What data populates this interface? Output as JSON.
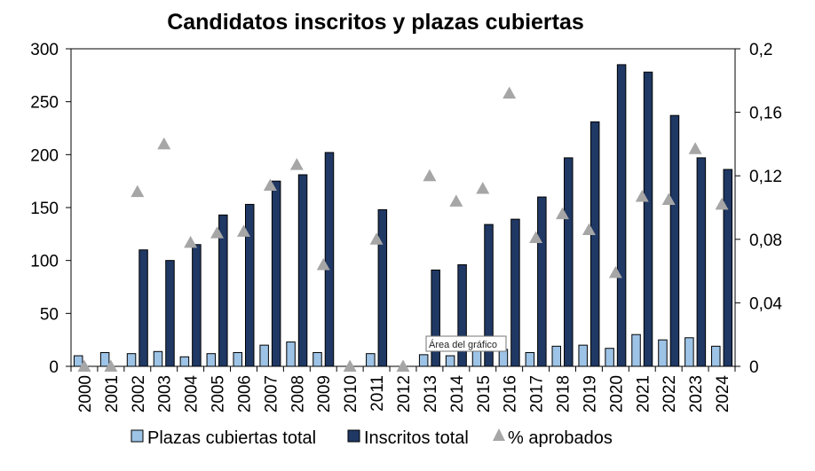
{
  "chart_data": {
    "type": "bar",
    "title": "Candidatos inscritos y plazas cubiertas",
    "categories": [
      "2000",
      "2001",
      "2002",
      "2003",
      "2004",
      "2005",
      "2006",
      "2007",
      "2008",
      "2009",
      "2010",
      "2011",
      "2012",
      "2013",
      "2014",
      "2015",
      "2016",
      "2017",
      "2018",
      "2019",
      "2020",
      "2021",
      "2022",
      "2023",
      "2024"
    ],
    "series": [
      {
        "name": "Plazas cubiertas total",
        "type": "bar",
        "axis": "left",
        "color": "#9dc3e6",
        "values": [
          10,
          13,
          12,
          14,
          9,
          12,
          13,
          20,
          23,
          13,
          0,
          12,
          0,
          11,
          10,
          15,
          16,
          13,
          19,
          20,
          17,
          30,
          25,
          27,
          19
        ]
      },
      {
        "name": "Inscritos total",
        "type": "bar",
        "axis": "left",
        "color": "#1f3864",
        "values": [
          0,
          0,
          110,
          100,
          115,
          143,
          153,
          175,
          181,
          202,
          0,
          148,
          0,
          91,
          96,
          134,
          139,
          160,
          197,
          231,
          285,
          278,
          237,
          197,
          186
        ]
      },
      {
        "name": "% aprobados",
        "type": "scatter",
        "axis": "right",
        "color": "#a6a6a6",
        "marker": "triangle",
        "values": [
          0,
          0,
          0.11,
          0.14,
          0.078,
          0.084,
          0.085,
          0.114,
          0.127,
          0.064,
          0,
          0.08,
          0,
          0.12,
          0.104,
          0.112,
          0.172,
          0.081,
          0.096,
          0.086,
          0.059,
          0.107,
          0.105,
          0.137,
          0.102
        ]
      }
    ],
    "y_left": {
      "min": 0,
      "max": 300,
      "ticks": [
        "0",
        "50",
        "100",
        "150",
        "200",
        "250",
        "300"
      ]
    },
    "y_right": {
      "min": 0,
      "max": 0.2,
      "ticks": [
        "0",
        "0,04",
        "0,08",
        "0,12",
        "0,16",
        "0,2"
      ]
    },
    "legend_position": "bottom",
    "legend": [
      "Plazas cubiertas total",
      "Inscritos total",
      "% aprobados"
    ],
    "tooltip": "Área del gráfico"
  }
}
